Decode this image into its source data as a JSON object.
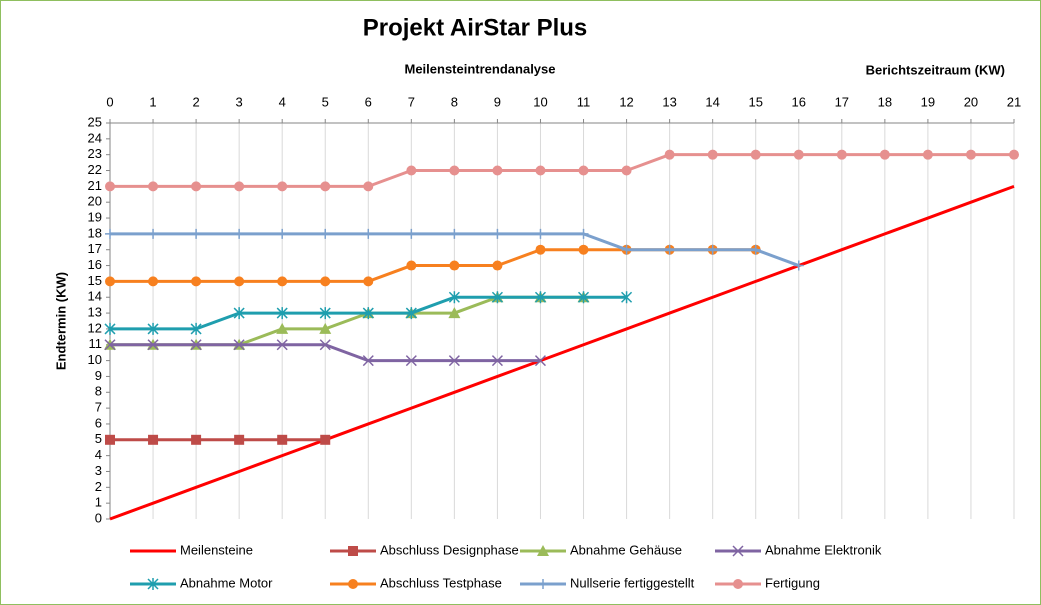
{
  "chart_data": {
    "type": "line",
    "title": "Projekt AirStar Plus",
    "subtitle": "Meilensteintrendanalyse",
    "x_label": "Berichtszeitraum  (KW)",
    "y_label": "Endtermin (KW)",
    "x": [
      0,
      1,
      2,
      3,
      4,
      5,
      6,
      7,
      8,
      9,
      10,
      11,
      12,
      13,
      14,
      15,
      16,
      17,
      18,
      19,
      20,
      21
    ],
    "xlim": [
      0,
      21
    ],
    "xticks": [
      0,
      1,
      2,
      3,
      4,
      5,
      6,
      7,
      8,
      9,
      10,
      11,
      12,
      13,
      14,
      15,
      16,
      17,
      18,
      19,
      20,
      21
    ],
    "ylim": [
      0,
      25
    ],
    "yticks": [
      0,
      1,
      2,
      3,
      4,
      5,
      6,
      7,
      8,
      9,
      10,
      11,
      12,
      13,
      14,
      15,
      16,
      17,
      18,
      19,
      20,
      21,
      22,
      23,
      24,
      25
    ],
    "grid": "x",
    "series": [
      {
        "name": "Meilensteine",
        "color": "#ff0000",
        "marker": "none",
        "width": 3,
        "values": [
          0,
          1,
          2,
          3,
          4,
          5,
          6,
          7,
          8,
          9,
          10,
          11,
          12,
          13,
          14,
          15,
          16,
          17,
          18,
          19,
          20,
          21
        ]
      },
      {
        "name": "Abschluss Designphase",
        "color": "#be4b48",
        "marker": "square",
        "width": 3,
        "values": [
          5,
          5,
          5,
          5,
          5,
          5,
          null,
          null,
          null,
          null,
          null,
          null,
          null,
          null,
          null,
          null,
          null,
          null,
          null,
          null,
          null,
          null
        ]
      },
      {
        "name": "Abnahme Gehäuse",
        "color": "#9bbb59",
        "marker": "triangle",
        "width": 3,
        "values": [
          11,
          11,
          11,
          11,
          12,
          12,
          13,
          13,
          13,
          14,
          14,
          14,
          null,
          null,
          null,
          null,
          null,
          null,
          null,
          null,
          null,
          null
        ]
      },
      {
        "name": "Abnahme Elektronik",
        "color": "#7f64a2",
        "marker": "x",
        "width": 3,
        "values": [
          11,
          11,
          11,
          11,
          11,
          11,
          10,
          10,
          10,
          10,
          10,
          null,
          null,
          null,
          null,
          null,
          null,
          null,
          null,
          null,
          null,
          null
        ]
      },
      {
        "name": "Abnahme Motor",
        "color": "#1f9eae",
        "marker": "star",
        "width": 3,
        "values": [
          12,
          12,
          12,
          13,
          13,
          13,
          13,
          13,
          14,
          14,
          14,
          14,
          14,
          null,
          null,
          null,
          null,
          null,
          null,
          null,
          null,
          null
        ]
      },
      {
        "name": "Abschluss Testphase",
        "color": "#f7801f",
        "marker": "circle",
        "width": 3,
        "values": [
          15,
          15,
          15,
          15,
          15,
          15,
          15,
          16,
          16,
          16,
          17,
          17,
          17,
          17,
          17,
          17,
          null,
          null,
          null,
          null,
          null,
          null
        ]
      },
      {
        "name": "Nullserie fertiggestellt",
        "color": "#7ba0cd",
        "marker": "plus",
        "width": 3,
        "values": [
          18,
          18,
          18,
          18,
          18,
          18,
          18,
          18,
          18,
          18,
          18,
          18,
          17,
          17,
          17,
          17,
          16,
          null,
          null,
          null,
          null,
          null
        ]
      },
      {
        "name": "Fertigung",
        "color": "#e6908f",
        "marker": "circle",
        "width": 3,
        "values": [
          21,
          21,
          21,
          21,
          21,
          21,
          21,
          22,
          22,
          22,
          22,
          22,
          22,
          23,
          23,
          23,
          23,
          23,
          23,
          23,
          23,
          23
        ]
      }
    ]
  }
}
